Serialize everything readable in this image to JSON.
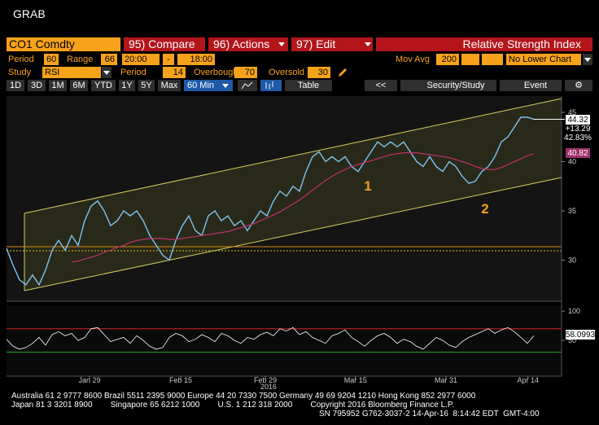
{
  "title": "GRAB",
  "toolbar": {
    "security": "CO1 Comdty",
    "compare": "95) Compare",
    "actions": "96) Actions",
    "edit": "97) Edit",
    "study_name": "Relative Strength Index"
  },
  "settings": {
    "period_label": "Period",
    "period": "60",
    "range_label": "Range",
    "range": "66",
    "start": "20:00",
    "dash": "-",
    "end": "18:00",
    "mov_avg_label": "Mov Avg",
    "mov_avg": "200",
    "lower_chart": "No Lower Chart",
    "study_label": "Study",
    "study": "RSI",
    "rsi_period_label": "Period",
    "rsi_period": "14",
    "overbought_label": "Overbought",
    "overbought": 70,
    "oversold_label": "Oversold",
    "oversold": 30
  },
  "buttons": [
    "1D",
    "3D",
    "1M",
    "6M",
    "YTD",
    "1Y",
    "5Y",
    "Max",
    "60 Min"
  ],
  "table": "Table",
  "back": "<<",
  "security_study": "Security/Study",
  "event": "Event",
  "chart_data": {
    "type": "line",
    "xlim": [
      0,
      81
    ],
    "xticks": [
      {
        "value": 12.75,
        "label": "Jan 29"
      },
      {
        "value": 26.75,
        "label": "Feb 15"
      },
      {
        "value": 39.75,
        "label": "Feb 29"
      },
      {
        "value": 53.6,
        "label": "Mar 15"
      },
      {
        "value": 67.5,
        "label": "Mar 31"
      },
      {
        "value": 80.1,
        "label": "Apr 14"
      }
    ],
    "year_label": "2016",
    "ylim": [
      25.83,
      46.65
    ],
    "yticks": [
      30,
      35,
      40,
      45
    ],
    "series": [
      {
        "color": "#7fc4f0",
        "values": [
          31.2,
          29.5,
          28,
          27.5,
          28.5,
          27.5,
          29,
          31,
          32,
          31,
          32.5,
          31.5,
          34,
          35.5,
          36,
          35,
          33.5,
          34,
          35,
          34.5,
          35,
          34,
          32.5,
          31.5,
          30.5,
          30,
          32,
          33.5,
          34.5,
          33,
          32.5,
          34.5,
          35,
          34,
          34.5,
          33.5,
          34,
          33,
          34,
          35,
          34.5,
          36,
          37,
          36.5,
          37.5,
          37,
          39,
          40.5,
          41,
          40,
          40.5,
          40,
          40.5,
          39.5,
          39,
          40,
          41,
          42,
          41.5,
          42,
          41.5,
          42,
          41,
          40,
          39.5,
          40.5,
          39.5,
          39,
          40,
          39.5,
          38.5,
          37.8,
          38,
          39,
          39.5,
          40.5,
          42,
          42.5,
          43.5,
          44.5,
          44.5,
          44.3
        ]
      },
      {
        "color": "#c0306a",
        "values": [
          null,
          null,
          null,
          null,
          null,
          null,
          null,
          null,
          null,
          null,
          29.8,
          29.9,
          30.1,
          30.3,
          30.5,
          30.8,
          31.0,
          31.3,
          31.5,
          31.8,
          32.0,
          32.1,
          32.2,
          32.2,
          32.2,
          32.1,
          32.1,
          32.2,
          32.3,
          32.4,
          32.5,
          32.6,
          32.7,
          32.8,
          32.9,
          33.1,
          33.3,
          33.5,
          33.7,
          34.0,
          34.3,
          34.6,
          34.9,
          35.3,
          35.7,
          36.1,
          36.6,
          37.1,
          37.6,
          38.1,
          38.5,
          38.9,
          39.2,
          39.5,
          39.7,
          39.9,
          40.1,
          40.3,
          40.5,
          40.7,
          40.8,
          40.9,
          40.9,
          40.9,
          40.8,
          40.7,
          40.6,
          40.5,
          40.4,
          40.2,
          40.0,
          39.8,
          39.5,
          39.3,
          39.2,
          39.2,
          39.4,
          39.7,
          40.0,
          40.3,
          40.6,
          40.8
        ]
      }
    ],
    "last_price": "44.32",
    "change": "+13.29",
    "change_pct": "42.83%",
    "ma_last": "40.82",
    "annotations": [
      "1",
      "2"
    ],
    "rsi": {
      "color": "#ffffff",
      "ylim": [
        -11,
        110
      ],
      "yticks": [
        50,
        100
      ],
      "last": "58.0993",
      "values": [
        52,
        40,
        35,
        38,
        45,
        55,
        42,
        60,
        65,
        58,
        62,
        50,
        55,
        70,
        72,
        60,
        48,
        52,
        55,
        45,
        58,
        50,
        40,
        35,
        38,
        55,
        62,
        58,
        48,
        52,
        60,
        55,
        48,
        62,
        58,
        50,
        45,
        55,
        52,
        60,
        64,
        58,
        70,
        66,
        72,
        60,
        65,
        55,
        50,
        45,
        58,
        62,
        68,
        55,
        48,
        40,
        50,
        58,
        62,
        55,
        45,
        52,
        48,
        40,
        35,
        45,
        55,
        50,
        42,
        38,
        48,
        55,
        60,
        65,
        70,
        62,
        68,
        72,
        65,
        55,
        45,
        58
      ]
    }
  },
  "footer": [
    "Australia 61 2 9777 8600 Brazil 5511 2395 9000 Europe 44 20 7330 7500 Germany 49 69 9204 1210 Hong Kong 852 2977 6000",
    "Japan 81 3 3201 8900        Singapore 65 6212 1000        U.S. 1 212 318 2000        Copyright 2016 Bloomberg Finance L.P.",
    "SN 795952 G762-3037-2 14-Apr-16  8:14:42 EDT  GMT-4:00"
  ]
}
